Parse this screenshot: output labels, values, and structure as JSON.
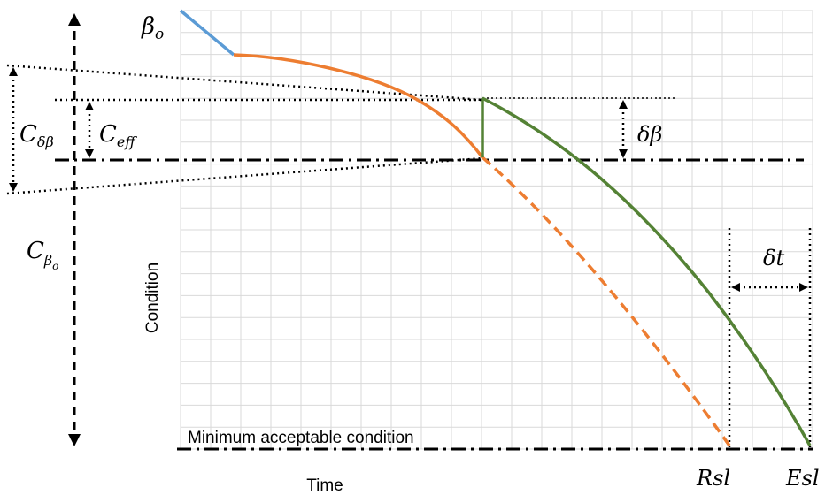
{
  "labels": {
    "beta_o": "β",
    "beta_o_sub": "o",
    "c_delta_beta": "C",
    "c_delta_beta_sub": "δβ",
    "c_eff": "C",
    "c_eff_sub": "eff",
    "c_beta_o": "C",
    "c_beta_o_sub": "β",
    "c_beta_o_subsub": "o",
    "delta_beta": "δβ",
    "delta_t": "δt",
    "rsl": "Rsl",
    "esl": "Esl",
    "min_condition": "Minimum acceptable condition",
    "y_axis": "Condition",
    "x_axis": "Time"
  },
  "colors": {
    "grid": "#d9d9d9",
    "initial_segment": "#5b9bd5",
    "deterioration_curve": "#ed7d31",
    "intervention_curve": "#548235",
    "annotation": "#000000"
  }
}
